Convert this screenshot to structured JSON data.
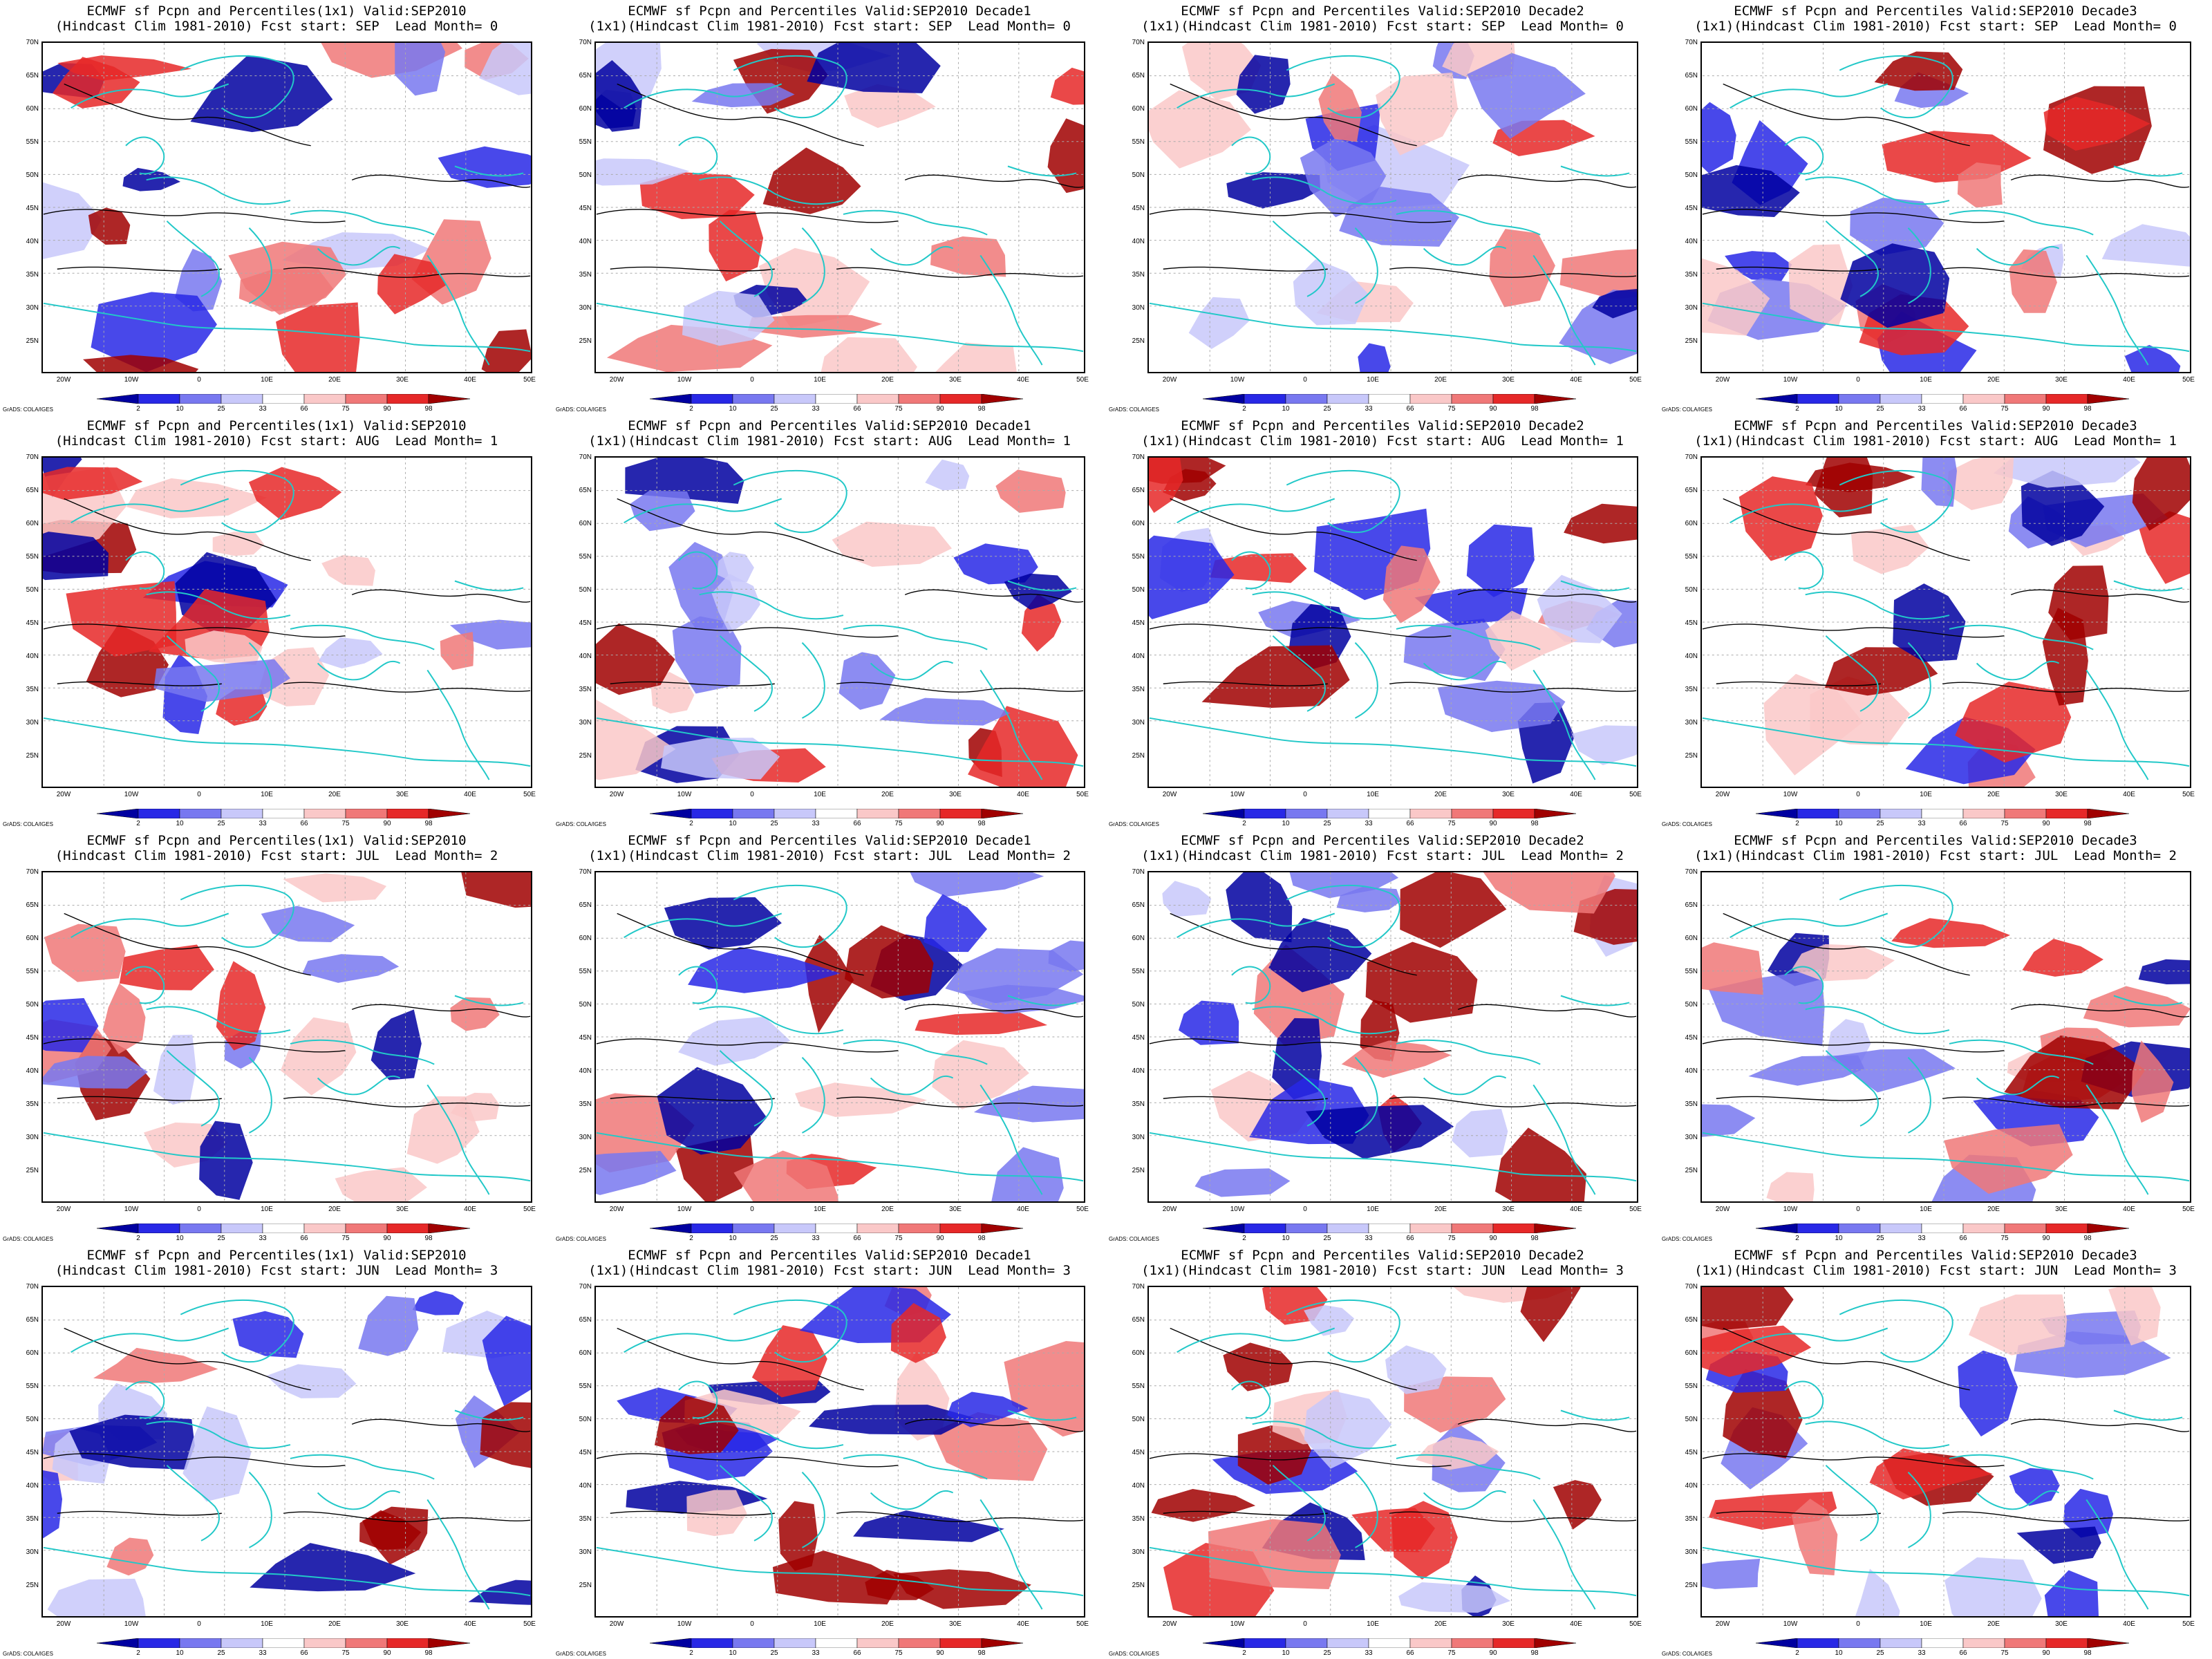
{
  "panels": [
    {
      "title1": "ECMWF sf Pcpn and Percentiles(1x1) Valid:SEP2010",
      "title2": "(Hindcast Clim 1981-2010) Fcst start: SEP  Lead Month= 0"
    },
    {
      "title1": "ECMWF sf Pcpn and Percentiles Valid:SEP2010 Decade1",
      "title2": "(1x1)(Hindcast Clim 1981-2010) Fcst start: SEP  Lead Month= 0"
    },
    {
      "title1": "ECMWF sf Pcpn and Percentiles Valid:SEP2010 Decade2",
      "title2": "(1x1)(Hindcast Clim 1981-2010) Fcst start: SEP  Lead Month= 0"
    },
    {
      "title1": "ECMWF sf Pcpn and Percentiles Valid:SEP2010 Decade3",
      "title2": "(1x1)(Hindcast Clim 1981-2010) Fcst start: SEP  Lead Month= 0"
    },
    {
      "title1": "ECMWF sf Pcpn and Percentiles(1x1) Valid:SEP2010",
      "title2": "(Hindcast Clim 1981-2010) Fcst start: AUG  Lead Month= 1"
    },
    {
      "title1": "ECMWF sf Pcpn and Percentiles Valid:SEP2010 Decade1",
      "title2": "(1x1)(Hindcast Clim 1981-2010) Fcst start: AUG  Lead Month= 1"
    },
    {
      "title1": "ECMWF sf Pcpn and Percentiles Valid:SEP2010 Decade2",
      "title2": "(1x1)(Hindcast Clim 1981-2010) Fcst start: AUG  Lead Month= 1"
    },
    {
      "title1": "ECMWF sf Pcpn and Percentiles Valid:SEP2010 Decade3",
      "title2": "(1x1)(Hindcast Clim 1981-2010) Fcst start: AUG  Lead Month= 1"
    },
    {
      "title1": "ECMWF sf Pcpn and Percentiles(1x1) Valid:SEP2010",
      "title2": "(Hindcast Clim 1981-2010) Fcst start: JUL  Lead Month= 2"
    },
    {
      "title1": "ECMWF sf Pcpn and Percentiles Valid:SEP2010 Decade1",
      "title2": "(1x1)(Hindcast Clim 1981-2010) Fcst start: JUL  Lead Month= 2"
    },
    {
      "title1": "ECMWF sf Pcpn and Percentiles Valid:SEP2010 Decade2",
      "title2": "(1x1)(Hindcast Clim 1981-2010) Fcst start: JUL  Lead Month= 2"
    },
    {
      "title1": "ECMWF sf Pcpn and Percentiles Valid:SEP2010 Decade3",
      "title2": "(1x1)(Hindcast Clim 1981-2010) Fcst start: JUL  Lead Month= 2"
    },
    {
      "title1": "ECMWF sf Pcpn and Percentiles(1x1) Valid:SEP2010",
      "title2": "(Hindcast Clim 1981-2010) Fcst start: JUN  Lead Month= 3"
    },
    {
      "title1": "ECMWF sf Pcpn and Percentiles Valid:SEP2010 Decade1",
      "title2": "(1x1)(Hindcast Clim 1981-2010) Fcst start: JUN  Lead Month= 3"
    },
    {
      "title1": "ECMWF sf Pcpn and Percentiles Valid:SEP2010 Decade2",
      "title2": "(1x1)(Hindcast Clim 1981-2010) Fcst start: JUN  Lead Month= 3"
    },
    {
      "title1": "ECMWF sf Pcpn and Percentiles Valid:SEP2010 Decade3",
      "title2": "(1x1)(Hindcast Clim 1981-2010) Fcst start: JUN  Lead Month= 3"
    }
  ],
  "lat_labels": [
    "70N",
    "65N",
    "60N",
    "55N",
    "50N",
    "45N",
    "40N",
    "35N",
    "30N",
    "25N"
  ],
  "lon_labels": [
    "20W",
    "10W",
    "0",
    "10E",
    "20E",
    "30E",
    "40E",
    "50E"
  ],
  "colorbar": {
    "labels": [
      "2",
      "10",
      "25",
      "33",
      "66",
      "75",
      "90",
      "98"
    ],
    "colors": [
      "#0000a0",
      "#2828e6",
      "#7878f0",
      "#c8c8fa",
      "#ffffff",
      "#fac8c8",
      "#f07878",
      "#e62828",
      "#a00000"
    ]
  },
  "credit": "GrADS: COLA/IGES",
  "colors": {
    "coast": "#22c8c8",
    "contour": "#000000"
  }
}
